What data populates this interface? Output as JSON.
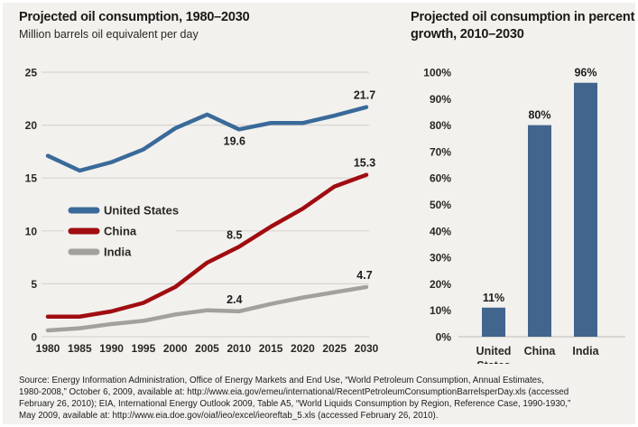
{
  "colors": {
    "background": "#F2F1EE",
    "grid": "#D8D6D2",
    "baseline": "#C9C6C2",
    "axis_text": "#2B2723",
    "title_text": "#1B1815"
  },
  "chart_data": [
    {
      "type": "line",
      "title": "Projected oil consumption, 1980–2030",
      "subtitle": "Million barrels oil equivalent per day",
      "x": [
        1980,
        1985,
        1990,
        1995,
        2000,
        2005,
        2010,
        2015,
        2020,
        2025,
        2030
      ],
      "ylim": [
        0,
        25
      ],
      "yticks": [
        0,
        5,
        10,
        15,
        20,
        25
      ],
      "grid": true,
      "legend_position": "inside-left",
      "series": [
        {
          "name": "United States",
          "color": "#3A6A99",
          "values": [
            17.1,
            15.7,
            16.5,
            17.7,
            19.7,
            21.0,
            19.6,
            20.2,
            20.2,
            20.9,
            21.7
          ]
        },
        {
          "name": "China",
          "color": "#A00C10",
          "values": [
            1.9,
            1.9,
            2.4,
            3.2,
            4.7,
            7.0,
            8.5,
            10.4,
            12.1,
            14.2,
            15.3
          ]
        },
        {
          "name": "India",
          "color": "#A3A19E",
          "values": [
            0.6,
            0.8,
            1.2,
            1.5,
            2.1,
            2.5,
            2.4,
            3.1,
            3.7,
            4.2,
            4.7
          ]
        }
      ],
      "annotations": [
        {
          "series": "United States",
          "x": 2010,
          "label": "19.6",
          "position": "below"
        },
        {
          "series": "United States",
          "x": 2030,
          "label": "21.7",
          "position": "above"
        },
        {
          "series": "China",
          "x": 2010,
          "label": "8.5",
          "position": "above"
        },
        {
          "series": "China",
          "x": 2030,
          "label": "15.3",
          "position": "above"
        },
        {
          "series": "India",
          "x": 2010,
          "label": "2.4",
          "position": "above"
        },
        {
          "series": "India",
          "x": 2030,
          "label": "4.7",
          "position": "above"
        }
      ]
    },
    {
      "type": "bar",
      "title": "Projected oil consumption in percent growth, 2010–2030",
      "categories": [
        "United States",
        "China",
        "India"
      ],
      "values": [
        11,
        80,
        96
      ],
      "value_labels": [
        "11%",
        "80%",
        "96%"
      ],
      "bar_color": "#42658E",
      "ylim": [
        0,
        100
      ],
      "ytick_labels": [
        "0%",
        "10%",
        "20%",
        "30%",
        "40%",
        "50%",
        "60%",
        "70%",
        "80%",
        "90%",
        "100%"
      ],
      "grid": false,
      "legend_position": "none"
    }
  ],
  "source": {
    "lines": [
      "Source: Energy Information Administration, Office of Energy Markets and End Use, “World Petroleum Consumption, Annual Estimates,",
      "1980-2008,” October 6, 2009, available at: http://www.eia.gov/emeu/international/RecentPetroleumConsumptionBarrelsperDay.xls (accessed",
      "February 26, 2010); EIA, International Energy Outlook 2009, Table A5, “World Liquids Consumption by Region, Reference Case, 1990-1930,”",
      "May 2009, available at: http://www.eia.doe.gov/oiaf/ieo/excel/ieoreftab_5.xls (accessed February 26, 2010)."
    ]
  }
}
